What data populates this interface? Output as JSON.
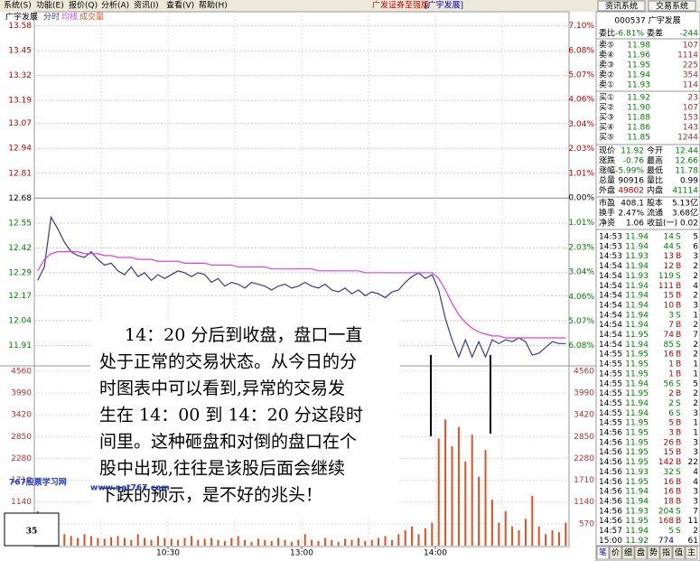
{
  "menu": [
    "系统(S)",
    "功能(E)",
    "报价(Q)",
    "分析(A)",
    "资讯(I)",
    "查看(V)",
    "帮助(H)"
  ],
  "title_bar": {
    "app": "广发证券至强版",
    "stock": "[广宇发展]",
    "buttons": [
      "资讯系统",
      "交易系统"
    ]
  },
  "chart_data": {
    "type": "line",
    "stock_name": "广宇发展",
    "xlim": [
      0,
      80
    ],
    "xticks": [
      {
        "value": 20,
        "label": "10:30"
      },
      {
        "value": 40,
        "label": "13:00"
      },
      {
        "value": 60,
        "label": "14:00"
      }
    ],
    "ylim": [
      11.78,
      13.63
    ],
    "yticks": [
      13.58,
      13.45,
      13.32,
      13.19,
      13.07,
      12.94,
      12.81,
      12.68,
      12.55,
      12.42,
      12.29,
      12.17,
      12.04,
      11.91
    ],
    "y2lim": [
      -7.1,
      7.49
    ],
    "y2ticks": [
      {
        "value": 7.1,
        "label": "7.10%"
      },
      {
        "value": 6.08,
        "label": "6.08%"
      },
      {
        "value": 5.07,
        "label": "5.07%"
      },
      {
        "value": 4.06,
        "label": "4.06%"
      },
      {
        "value": 3.04,
        "label": "3.04%"
      },
      {
        "value": 2.03,
        "label": "2.03%"
      },
      {
        "value": 1.01,
        "label": "1.01%"
      },
      {
        "value": 0.0,
        "label": "0.00%"
      },
      {
        "value": -1.01,
        "label": "1.01%"
      },
      {
        "value": -2.03,
        "label": "2.03%"
      },
      {
        "value": -3.04,
        "label": "3.04%"
      },
      {
        "value": -4.06,
        "label": "4.06%"
      },
      {
        "value": -5.07,
        "label": "5.07%"
      },
      {
        "value": -6.08,
        "label": "6.08%"
      }
    ],
    "series": [
      {
        "name": "分时",
        "color": "#3a3a8c",
        "values": [
          12.25,
          12.32,
          12.58,
          12.52,
          12.45,
          12.4,
          12.38,
          12.37,
          12.4,
          12.36,
          12.33,
          12.34,
          12.3,
          12.28,
          12.32,
          12.27,
          12.29,
          12.25,
          12.28,
          12.26,
          12.28,
          12.3,
          12.29,
          12.27,
          12.29,
          12.28,
          12.24,
          12.26,
          12.22,
          12.24,
          12.23,
          12.21,
          12.24,
          12.23,
          12.22,
          12.2,
          12.22,
          12.23,
          12.21,
          12.22,
          12.24,
          12.22,
          12.21,
          12.23,
          12.2,
          12.19,
          12.21,
          12.18,
          12.2,
          12.17,
          12.19,
          12.18,
          12.16,
          12.19,
          12.2,
          12.24,
          12.27,
          12.29,
          12.26,
          12.28,
          12.2,
          12.05,
          11.94,
          11.85,
          11.94,
          11.85,
          11.93,
          11.85,
          11.94,
          11.92,
          11.94,
          11.93,
          11.95,
          11.93,
          11.86,
          11.87,
          11.9,
          11.93,
          11.92,
          11.92
        ]
      },
      {
        "name": "均线",
        "color": "#e040e0",
        "values": [
          12.3,
          12.36,
          12.39,
          12.4,
          12.4,
          12.4,
          12.4,
          12.39,
          12.39,
          12.39,
          12.38,
          12.38,
          12.37,
          12.37,
          12.37,
          12.36,
          12.36,
          12.36,
          12.35,
          12.35,
          12.35,
          12.35,
          12.34,
          12.34,
          12.34,
          12.34,
          12.33,
          12.33,
          12.33,
          12.33,
          12.32,
          12.32,
          12.32,
          12.32,
          12.32,
          12.31,
          12.31,
          12.31,
          12.31,
          12.31,
          12.31,
          12.31,
          12.3,
          12.3,
          12.3,
          12.3,
          12.3,
          12.3,
          12.3,
          12.29,
          12.29,
          12.29,
          12.29,
          12.29,
          12.29,
          12.29,
          12.29,
          12.29,
          12.29,
          12.29,
          12.26,
          12.2,
          12.13,
          12.07,
          12.03,
          12.0,
          11.98,
          11.97,
          11.96,
          11.96,
          11.95,
          11.95,
          11.95,
          11.95,
          11.95,
          11.95,
          11.95,
          11.95,
          11.95,
          11.95
        ]
      }
    ],
    "volume": {
      "name": "成交量",
      "color": "#e05020",
      "ylim": [
        0,
        4700
      ],
      "yticks": [
        4560,
        3990,
        3420,
        2850,
        2280,
        1710,
        1140,
        570
      ],
      "values": [
        900,
        600,
        400,
        350,
        300,
        250,
        200,
        300,
        250,
        200,
        180,
        220,
        250,
        200,
        150,
        300,
        200,
        150,
        250,
        200,
        180,
        150,
        200,
        250,
        150,
        180,
        200,
        150,
        120,
        200,
        250,
        150,
        100,
        180,
        150,
        120,
        200,
        150,
        100,
        150,
        300,
        150,
        120,
        200,
        150,
        100,
        180,
        150,
        200,
        120,
        150,
        200,
        250,
        150,
        300,
        400,
        500,
        300,
        450,
        600,
        2800,
        3300,
        2600,
        3100,
        2200,
        2900,
        1800,
        2500,
        1200,
        600,
        900,
        500,
        400,
        700,
        1300,
        500,
        300,
        400,
        350,
        600
      ]
    }
  },
  "annotation": [
    "14：20 分后到收盘，盘口一直",
    "处于正常的交易状态。从今日的分",
    "时图表中可以看到,异常的交易发",
    "生在 14：00 到 14：20 分这段时",
    "间里。这种砸盘和对倒的盘口在个",
    "股中出现,往往是该股后面会继续",
    "下跌的预示，是不好的兆头！"
  ],
  "watermark": {
    "site": "767股票学习网",
    "url": "www.net767.com"
  },
  "badge": "35",
  "quote": {
    "code_name": "000537 广宇发展",
    "ratio": [
      "委比",
      "-6.81%",
      "委差",
      "-244"
    ],
    "asks": [
      [
        "卖⑤",
        "11.98",
        "107"
      ],
      [
        "卖④",
        "11.96",
        "1114"
      ],
      [
        "卖③",
        "11.95",
        "225"
      ],
      [
        "卖②",
        "11.94",
        "354"
      ],
      [
        "卖①",
        "11.93",
        "114"
      ]
    ],
    "bids": [
      [
        "买①",
        "11.92",
        "23"
      ],
      [
        "买②",
        "11.90",
        "107"
      ],
      [
        "买③",
        "11.88",
        "153"
      ],
      [
        "买④",
        "11.86",
        "143"
      ],
      [
        "买⑤",
        "11.85",
        "1244"
      ]
    ],
    "stats": [
      [
        "现价",
        "11.92",
        "今开",
        "12.44"
      ],
      [
        "涨跌",
        "-0.76",
        "最高",
        "12.66"
      ],
      [
        "涨幅",
        "-5.99%",
        "最低",
        "11.78"
      ],
      [
        "总量",
        "90916",
        "量比",
        "0.99"
      ],
      [
        "外盘",
        "49802",
        "内盘",
        "41114"
      ]
    ],
    "fundamentals": [
      [
        "市盈",
        "408.1",
        "股本",
        "5.13亿"
      ],
      [
        "换手",
        "2.47%",
        "流通",
        "3.68亿"
      ],
      [
        "净资",
        "1.06",
        "收益(一)",
        "0.02"
      ]
    ]
  },
  "trades": [
    [
      "14:53",
      "11.94",
      "14",
      "S",
      "5"
    ],
    [
      "14:53",
      "11.94",
      "44",
      "S",
      "6"
    ],
    [
      "14:53",
      "11.93",
      "13",
      "B",
      "3"
    ],
    [
      "14:54",
      "11.94",
      "12",
      "B",
      "2"
    ],
    [
      "14:54",
      "11.93",
      "119",
      "S",
      "2"
    ],
    [
      "14:54",
      "11.94",
      "111",
      "B",
      "4"
    ],
    [
      "14:54",
      "11.94",
      "15",
      "B",
      "2"
    ],
    [
      "14:54",
      "11.94",
      "10",
      "B",
      "3"
    ],
    [
      "14:54",
      "11.94",
      "3",
      "S",
      "1"
    ],
    [
      "14:54",
      "11.94",
      "7",
      "B",
      "2"
    ],
    [
      "14:54",
      "11.95",
      "74",
      "B",
      "7"
    ],
    [
      "14:54",
      "11.94",
      "85",
      "S",
      "2"
    ],
    [
      "14:55",
      "11.95",
      "16",
      "B",
      "2"
    ],
    [
      "14:55",
      "11.95",
      "1",
      "B",
      "1"
    ],
    [
      "14:55",
      "11.95",
      "1",
      "B",
      "1"
    ],
    [
      "14:55",
      "11.94",
      "56",
      "S",
      "5"
    ],
    [
      "14:55",
      "11.95",
      "2",
      "B",
      "2"
    ],
    [
      "14:55",
      "11.94",
      "2",
      "S",
      "2"
    ],
    [
      "14:55",
      "11.94",
      "6",
      "S",
      "3"
    ],
    [
      "14:55",
      "11.95",
      "5",
      "B",
      "1"
    ],
    [
      "14:56",
      "11.95",
      "3",
      "B",
      "1"
    ],
    [
      "14:56",
      "11.95",
      "26",
      "B",
      "3"
    ],
    [
      "14:56",
      "11.95",
      "15",
      "B",
      "3"
    ],
    [
      "14:56",
      "11.95",
      "142",
      "B",
      "22"
    ],
    [
      "14:56",
      "11.93",
      "32",
      "S",
      "4"
    ],
    [
      "14:56",
      "11.95",
      "16",
      "B",
      "4"
    ],
    [
      "14:56",
      "11.94",
      "16",
      "B",
      "3"
    ],
    [
      "14:56",
      "11.94",
      "18",
      "B",
      "3"
    ],
    [
      "14:56",
      "11.93",
      "204",
      "S",
      "7"
    ],
    [
      "14:56",
      "11.95",
      "168",
      "B",
      "11"
    ],
    [
      "14:57",
      "11.94",
      "5",
      "S",
      "2"
    ],
    [
      "15:00",
      "11.92",
      "774",
      "61"
    ]
  ],
  "tabs": [
    "笔",
    "价",
    "细",
    "盘",
    "势",
    "指",
    "值",
    "主"
  ]
}
